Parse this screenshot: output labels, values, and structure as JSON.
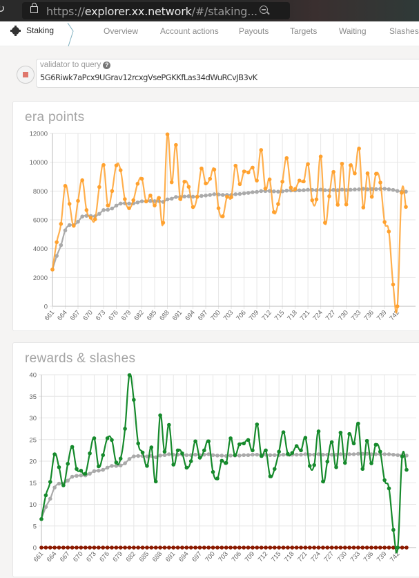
{
  "browser": {
    "url_scheme": "https://",
    "url_host": "explorer.xx.network",
    "url_rest": "/#/staking...",
    "icons": [
      "reload-icon",
      "lock-icon",
      "zoom-out-icon"
    ]
  },
  "nav": {
    "section": "Staking",
    "section_icon": "gear-icon",
    "tabs": [
      "Overview",
      "Account actions",
      "Payouts",
      "Targets",
      "Waiting",
      "Slashes"
    ]
  },
  "query": {
    "label": "validator to query",
    "help_icon": "?",
    "value": "5G6Riwk7aPcx9UGrav12rcxgVsePGKKfLas34dWuRCvJB3vK"
  },
  "chart_data": [
    {
      "type": "line",
      "title": "era points",
      "ylim": [
        0,
        12000
      ],
      "yticks": [
        "0",
        "2000",
        "4000",
        "6000",
        "8000",
        "10000",
        "12000"
      ],
      "grid": true,
      "x": [
        661,
        662,
        663,
        664,
        665,
        666,
        667,
        668,
        669,
        670,
        671,
        672,
        673,
        674,
        675,
        676,
        677,
        678,
        679,
        680,
        681,
        682,
        683,
        684,
        685,
        686,
        687,
        688,
        689,
        690,
        691,
        692,
        693,
        694,
        695,
        696,
        697,
        698,
        699,
        700,
        701,
        702,
        703,
        704,
        705,
        706,
        707,
        708,
        709,
        710,
        711,
        712,
        713,
        714,
        715,
        716,
        717,
        718,
        719,
        720,
        721,
        722,
        723,
        724,
        725,
        726,
        727,
        728,
        729,
        730,
        731,
        732,
        733,
        734,
        735,
        736,
        737,
        738,
        739,
        740,
        741,
        742,
        743,
        744
      ],
      "xticks": [
        "661",
        "664",
        "667",
        "670",
        "673",
        "676",
        "679",
        "682",
        "685",
        "688",
        "691",
        "694",
        "697",
        "700",
        "703",
        "706",
        "709",
        "712",
        "715",
        "718",
        "721",
        "724",
        "727",
        "730",
        "733",
        "736",
        "739",
        "742"
      ],
      "series": [
        {
          "color": "#aaaaaa",
          "values": [
            2550,
            3500,
            4240,
            5270,
            5640,
            5630,
            5870,
            6230,
            6280,
            6270,
            6250,
            6420,
            6680,
            6700,
            6790,
            6990,
            7130,
            7150,
            7130,
            7140,
            7210,
            7290,
            7290,
            7310,
            7300,
            7310,
            7250,
            7420,
            7470,
            7590,
            7590,
            7620,
            7640,
            7610,
            7610,
            7660,
            7690,
            7730,
            7780,
            7760,
            7730,
            7730,
            7730,
            7780,
            7800,
            7840,
            7870,
            7920,
            7940,
            8000,
            8000,
            8010,
            7980,
            7960,
            7980,
            8030,
            8040,
            8040,
            8050,
            8060,
            8090,
            8080,
            8060,
            8100,
            8060,
            8050,
            8080,
            8060,
            8100,
            8070,
            8090,
            8110,
            8120,
            8160,
            8120,
            8140,
            8130,
            8150,
            8160,
            8120,
            8080,
            8010,
            7960,
            7960
          ]
        },
        {
          "color": "#ffa12e",
          "values": [
            2550,
            4450,
            5720,
            8360,
            7110,
            5590,
            7320,
            8750,
            6680,
            6150,
            6040,
            8280,
            9810,
            7000,
            8000,
            9780,
            9450,
            7440,
            6810,
            7360,
            8510,
            8850,
            7280,
            7690,
            7000,
            7530,
            5800,
            11940,
            8610,
            11200,
            7450,
            8650,
            8290,
            6890,
            7600,
            9570,
            8530,
            8850,
            9490,
            6810,
            6250,
            7600,
            7580,
            9760,
            8480,
            9360,
            9290,
            9630,
            8730,
            10850,
            8170,
            8810,
            6540,
            7100,
            8650,
            10290,
            8240,
            8140,
            8730,
            8670,
            9870,
            7360,
            7420,
            10400,
            5800,
            7640,
            9330,
            7050,
            9900,
            7070,
            9790,
            9230,
            10950,
            6860,
            9230,
            7600,
            9200,
            8590,
            5850,
            5190,
            1510,
            0,
            7880,
            6900
          ]
        }
      ]
    },
    {
      "type": "line",
      "title": "rewards & slashes",
      "ylim": [
        0,
        40
      ],
      "yticks": [
        "0",
        "5",
        "10",
        "15",
        "20",
        "25",
        "30",
        "35",
        "40"
      ],
      "grid": true,
      "x": [
        661,
        662,
        663,
        664,
        665,
        666,
        667,
        668,
        669,
        670,
        671,
        672,
        673,
        674,
        675,
        676,
        677,
        678,
        679,
        680,
        681,
        682,
        683,
        684,
        685,
        686,
        687,
        688,
        689,
        690,
        691,
        692,
        693,
        694,
        695,
        696,
        697,
        698,
        699,
        700,
        701,
        702,
        703,
        704,
        705,
        706,
        707,
        708,
        709,
        710,
        711,
        712,
        713,
        714,
        715,
        716,
        717,
        718,
        719,
        720,
        721,
        722,
        723,
        724,
        725,
        726,
        727,
        728,
        729,
        730,
        731,
        732,
        733,
        734,
        735,
        736,
        737,
        738,
        739,
        740,
        741,
        742,
        743,
        744
      ],
      "xticks": [
        "661",
        "664",
        "667",
        "670",
        "673",
        "676",
        "679",
        "682",
        "685",
        "688",
        "691",
        "694",
        "697",
        "700",
        "703",
        "706",
        "709",
        "712",
        "715",
        "718",
        "721",
        "724",
        "727",
        "730",
        "733",
        "736",
        "739",
        "742"
      ],
      "series": [
        {
          "color": "#8b1a00",
          "values": [
            0,
            0,
            0,
            0,
            0,
            0,
            0,
            0,
            0,
            0,
            0,
            0,
            0,
            0,
            0,
            0,
            0,
            0,
            0,
            0,
            0,
            0,
            0,
            0,
            0,
            0,
            0,
            0,
            0,
            0,
            0,
            0,
            0,
            0,
            0,
            0,
            0,
            0,
            0,
            0,
            0,
            0,
            0,
            0,
            0,
            0,
            0,
            0,
            0,
            0,
            0,
            0,
            0,
            0,
            0,
            0,
            0,
            0,
            0,
            0,
            0,
            0,
            0,
            0,
            0,
            0,
            0,
            0,
            0,
            0,
            0,
            0,
            0,
            0,
            0,
            0,
            0,
            0,
            0,
            0,
            0,
            0,
            0,
            0
          ]
        },
        {
          "color": "#aaaaaa",
          "values": [
            6.6,
            9.4,
            11.3,
            13.9,
            14.8,
            14.8,
            15.5,
            16.4,
            16.6,
            16.7,
            16.7,
            17.1,
            17.7,
            17.8,
            18.0,
            18.5,
            18.9,
            18.9,
            19.0,
            19.5,
            20.5,
            21.1,
            21.2,
            21.2,
            21.1,
            21.2,
            20.9,
            21.3,
            21.4,
            21.6,
            21.5,
            21.5,
            21.5,
            21.4,
            21.4,
            21.5,
            21.4,
            21.5,
            21.6,
            21.4,
            21.3,
            21.3,
            21.2,
            21.3,
            21.3,
            21.3,
            21.4,
            21.4,
            21.5,
            21.5,
            21.5,
            21.5,
            21.4,
            21.4,
            21.4,
            21.5,
            21.5,
            21.5,
            21.5,
            21.5,
            21.6,
            21.5,
            21.5,
            21.6,
            21.5,
            21.5,
            21.5,
            21.5,
            21.6,
            21.5,
            21.6,
            21.6,
            21.7,
            21.7,
            21.7,
            21.6,
            21.6,
            21.6,
            21.6,
            21.6,
            21.5,
            21.4,
            21.4,
            21.3
          ]
        },
        {
          "color": "#168a2c",
          "values": [
            6.6,
            12.1,
            15.2,
            21.6,
            18.6,
            14.4,
            19.4,
            23.3,
            18.2,
            17.8,
            17.1,
            21.8,
            25.3,
            18.8,
            21.4,
            25.3,
            24.9,
            19.7,
            20.6,
            27.5,
            39.9,
            34.2,
            24.1,
            22.0,
            18.9,
            23.2,
            15.3,
            30.6,
            22.2,
            28.4,
            19.2,
            22.5,
            21.8,
            18.5,
            20.0,
            24.6,
            20.8,
            22.5,
            24.6,
            17.5,
            16.0,
            20.1,
            19.6,
            25.3,
            21.4,
            23.9,
            24.1,
            24.9,
            22.5,
            28.5,
            21.2,
            22.5,
            16.5,
            18.2,
            22.2,
            26.7,
            21.7,
            21.9,
            23.5,
            22.5,
            25.4,
            18.9,
            19.1,
            26.9,
            15.3,
            19.9,
            24.4,
            18.6,
            26.6,
            19.6,
            26.3,
            24.1,
            28.7,
            18.2,
            24.7,
            19.5,
            23.8,
            22.2,
            15.6,
            13.7,
            4.1,
            0,
            21.1,
            18.0
          ]
        }
      ]
    }
  ]
}
